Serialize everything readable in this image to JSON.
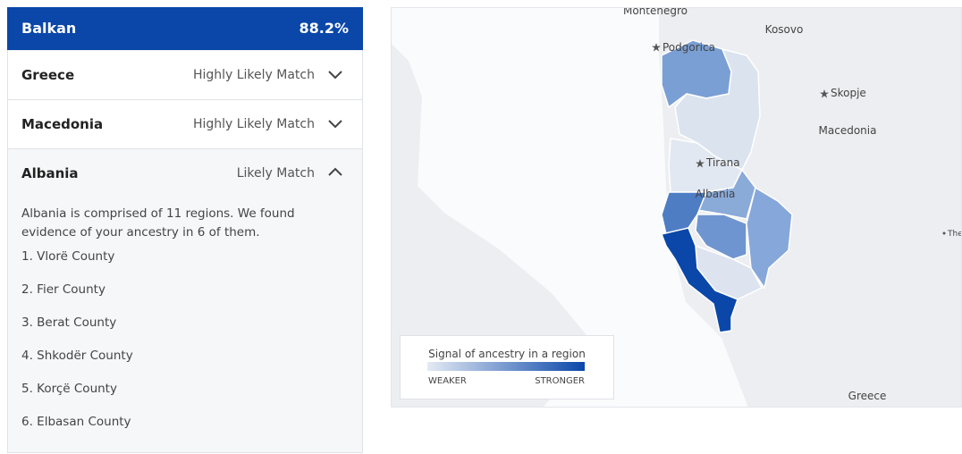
{
  "header": {
    "title": "Balkan",
    "percentage": "88.2%"
  },
  "regions": [
    {
      "name": "Greece",
      "match": "Highly Likely Match"
    },
    {
      "name": "Macedonia",
      "match": "Highly Likely Match"
    },
    {
      "name": "Albania",
      "match": "Likely Match",
      "description": "Albania is comprised of 11 regions. We found evidence of your ancestry in 6 of them.",
      "list": [
        "1. Vlorë County",
        "2. Fier County",
        "3. Berat County",
        "4. Shkodër County",
        "5. Korçë County",
        "6. Elbasan County"
      ]
    }
  ],
  "map": {
    "labels": [
      "Montenegro",
      "Kosovo",
      "Podgorica",
      "Skopje",
      "Macedonia",
      "Tirana",
      "Albania",
      "Greece",
      "The"
    ],
    "legend": {
      "title": "Signal of ancestry in a region",
      "low": "WEAKER",
      "high": "STRONGER"
    }
  }
}
